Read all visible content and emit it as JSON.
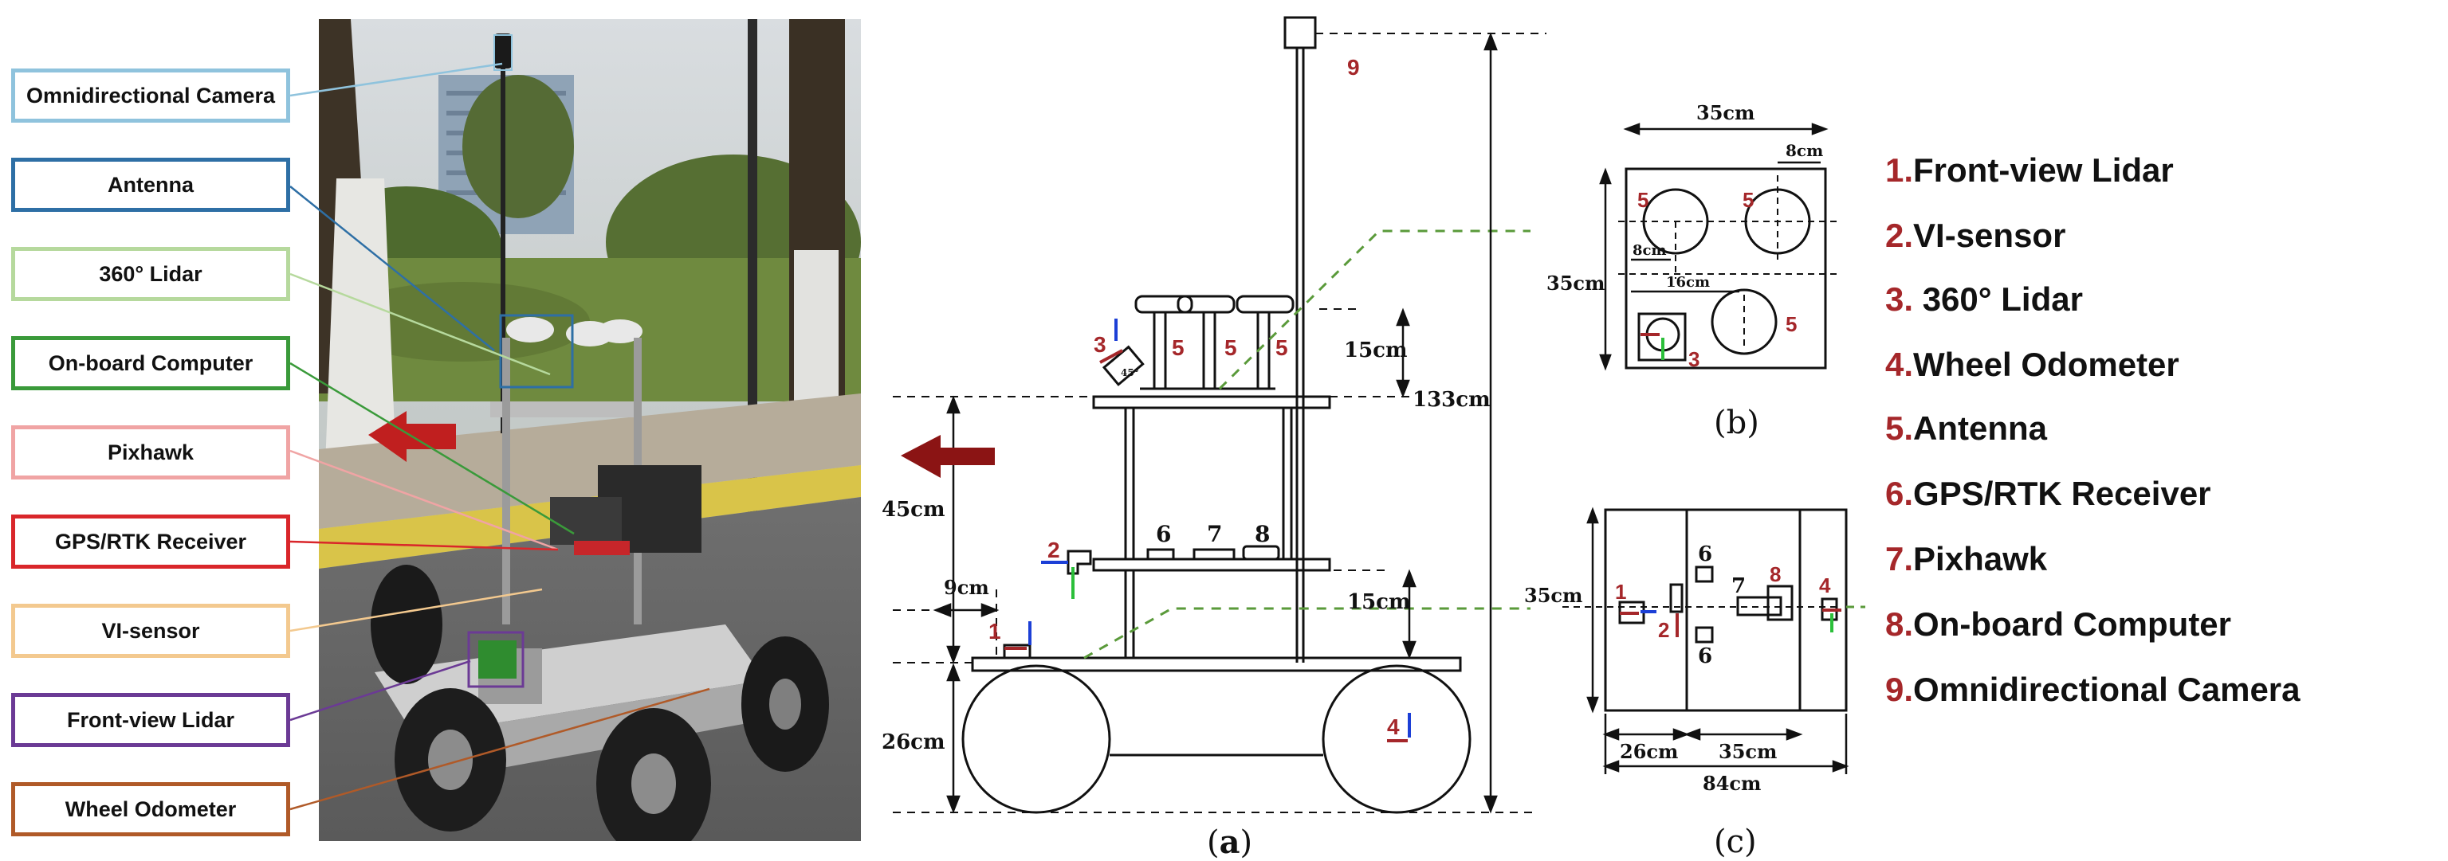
{
  "photo_labels": [
    {
      "text": "Omnidirectional Camera",
      "color": "#8fc3dd"
    },
    {
      "text": "Antenna",
      "color": "#2e6fa5"
    },
    {
      "text": "360° Lidar",
      "color": "#b6d99d"
    },
    {
      "text": "On-board Computer",
      "color": "#3a9a3a"
    },
    {
      "text": "Pixhawk",
      "color": "#f0a4a4"
    },
    {
      "text": "GPS/RTK Receiver",
      "color": "#d9262a"
    },
    {
      "text": "VI-sensor",
      "color": "#f3c98f"
    },
    {
      "text": "Front-view Lidar",
      "color": "#6b3a95"
    },
    {
      "text": "Wheel Odometer",
      "color": "#b05a28"
    }
  ],
  "legend": [
    {
      "num": "1.",
      "text": "Front-view Lidar"
    },
    {
      "num": "2.",
      "text": "VI-sensor"
    },
    {
      "num": "3.",
      "text": " 360° Lidar"
    },
    {
      "num": "4.",
      "text": "Wheel Odometer"
    },
    {
      "num": "5.",
      "text": "Antenna"
    },
    {
      "num": "6.",
      "text": "GPS/RTK Receiver"
    },
    {
      "num": "7.",
      "text": "Pixhawk"
    },
    {
      "num": "8.",
      "text": "On-board  Computer"
    },
    {
      "num": "9.",
      "text": "Omnidirectional Camera"
    }
  ],
  "side_view": {
    "caption_letter": "a",
    "dims": {
      "height_total": "133cm",
      "upper_gap": "45cm",
      "wheel_height": "26cm",
      "mid_gap": "15cm",
      "top_gap": "15cm",
      "front_offset": "9cm"
    },
    "markers": [
      "1",
      "2",
      "3",
      "4",
      "5",
      "5",
      "5",
      "6",
      "7",
      "8",
      "9"
    ],
    "angle": "45°"
  },
  "top_view_b": {
    "caption_letter": "b",
    "dims": {
      "width": "35cm",
      "height": "35cm",
      "small_offset": "8cm",
      "offset_8": "8cm",
      "offset_16": "16cm"
    },
    "markers": [
      "5",
      "5",
      "5",
      "3",
      "5"
    ]
  },
  "top_view_c": {
    "caption_letter": "c",
    "dims": {
      "height": "35cm",
      "seg1": "26cm",
      "seg2": "35cm",
      "total": "84cm"
    },
    "markers": [
      "1",
      "2",
      "6",
      "6",
      "7",
      "8",
      "4"
    ]
  },
  "colors": {
    "accent_red": "#a5272a",
    "arrow_red": "#8b1414",
    "dash_green": "#5a9a3a",
    "axis_blue": "#1c3fd6",
    "axis_green": "#2bbf3a"
  }
}
